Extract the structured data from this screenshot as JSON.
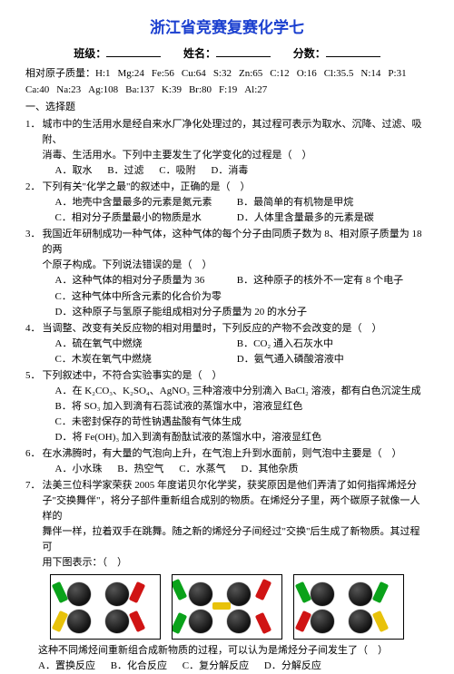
{
  "title": "浙江省竞赛复赛化学七",
  "header": {
    "class_label": "班级：",
    "name_label": "姓名：",
    "score_label": "分数："
  },
  "masses_label": "相对原子质量：",
  "masses_row1": [
    "H:1",
    "Mg:24",
    "Fe:56",
    "Cu:64",
    "S:32",
    "Zn:65",
    "C:12",
    "O:16",
    "Cl:35.5",
    "N:14",
    "P:31"
  ],
  "masses_row2": [
    "Ca:40",
    "Na:23",
    "Ag:108",
    "Ba:137",
    "K:39",
    "Br:80",
    "F:19",
    "Al:27"
  ],
  "section1": "一、选择题",
  "q1": {
    "stem1": "城市中的生活用水是经自来水厂净化处理过的，其过程可表示为取水、沉降、过滤、吸附、",
    "stem2": "消毒、生活用水。下列中主要发生了化学变化的过程是（　）",
    "A": "取水",
    "B": "过滤",
    "C": "吸附",
    "D": "消毒"
  },
  "q2": {
    "stem": "下列有关\"化学之最\"的叙述中，正确的是（　）",
    "A": "地壳中含量最多的元素是氮元素",
    "B": "最简单的有机物是甲烷",
    "C": "相对分子质量最小的物质是水",
    "D": "人体里含量最多的元素是碳"
  },
  "q3": {
    "stem1": "我国近年研制成功一种气体，这种气体的每个分子由同质子数为 8、相对原子质量为 18 的两",
    "stem2": "个原子构成。下列说法错误的是（　）",
    "A": "这种气体的相对分子质量为 36",
    "B": "这种原子的核外不一定有 8 个电子",
    "C": "这种气体中所含元素的化合价为零",
    "D": "这种原子与氢原子能组成相对分子质量为 20 的水分子"
  },
  "q4": {
    "stem": "当调整、改变有关反应物的相对用量时，下列反应的产物不会改变的是（　）",
    "A": "硫在氧气中燃烧",
    "B": "CO₂ 通入石灰水中",
    "C": "木炭在氧气中燃烧",
    "D": "氨气通入磷酸溶液中"
  },
  "q5": {
    "stem": "下列叙述中，不符合实验事实的是（　）",
    "A": "在 K₂CO₃、K₂SO₄、AgNO₃ 三种溶液中分别滴入 BaCl₂ 溶液，都有白色沉淀生成",
    "B": "将 SO₃ 加入到滴有石蕊试液的蒸馏水中，溶液显红色",
    "C": "未密封保存的苛性钠遇盐酸有气体生成",
    "D": "将 Fe(OH)₃ 加入到滴有酚酞试液的蒸馏水中，溶液显红色"
  },
  "q6": {
    "stem": "在水沸腾时，有大量的气泡向上升，在气泡上升到水面前，则气泡中主要是（　）",
    "A": "小水珠",
    "B": "热空气",
    "C": "水蒸气",
    "D": "其他杂质"
  },
  "q7": {
    "p1": "法美三位科学家荣获 2005 年度诺贝尔化学奖，获奖原因是他们弄清了如何指挥烯烃分",
    "p2": "子\"交换舞伴\"，将分子部件重新组合成别的物质。在烯烃分子里，两个碳原子就像一人样的",
    "p3": "舞伴一样，拉着双手在跳舞。随之新的烯烃分子间经过\"交换\"后生成了新物质。其过程可",
    "p4": "用下图表示：（　）",
    "after": "这种不同烯烃间重新组合成新物质的过程，可以认为是烯烃分子间发生了（　）",
    "A": "置换反应",
    "B": "化合反应",
    "C": "复分解反应",
    "D": "分解反应"
  }
}
